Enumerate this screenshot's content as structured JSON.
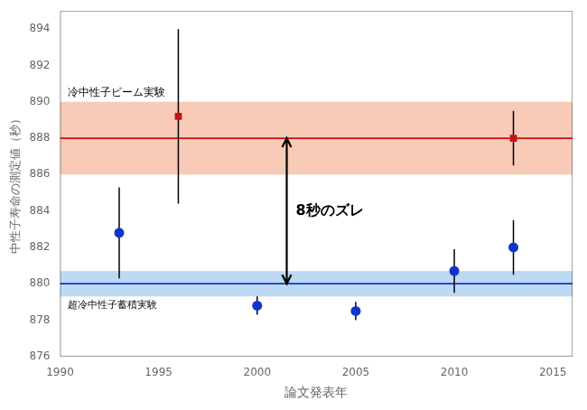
{
  "chart_data": {
    "type": "scatter",
    "xlabel": "論文発表年",
    "ylabel": "中性子寿命の測定値（秒）",
    "series": [
      {
        "color": "#cc1111",
        "marker": "square",
        "x": [
          1996,
          2013
        ],
        "values": [
          889.2,
          888.0
        ],
        "error_plus": [
          4.8,
          1.5
        ],
        "error_minus": [
          4.8,
          1.5
        ]
      },
      {
        "color": "#1133cc",
        "marker": "circle",
        "x": [
          1993,
          2000,
          2005,
          2010,
          2013
        ],
        "values": [
          882.8,
          878.8,
          878.5,
          880.7,
          882.0
        ],
        "error_plus": [
          2.5,
          0.5,
          0.5,
          1.2,
          1.5
        ],
        "error_minus": [
          2.5,
          0.5,
          0.5,
          1.2,
          1.5
        ]
      }
    ],
    "bands": [
      {
        "from": 886.0,
        "to": 890.0,
        "color": "#f5b8a0",
        "label": "冷中性子ビーム実験"
      },
      {
        "from": 879.3,
        "to": 880.7,
        "color": "#a8ccf0",
        "label": "超冷中性子蓄積実験"
      }
    ],
    "lines": [
      {
        "y": 888.0,
        "color": "#cc1111"
      },
      {
        "y": 880.0,
        "color": "#1133cc"
      }
    ],
    "arrow": {
      "x": 2001.5,
      "from": 888.0,
      "to": 880.0,
      "label": "8秒のズレ"
    },
    "xlim": [
      1990,
      2016
    ],
    "ylim": [
      876,
      895
    ],
    "xticks": [
      1990,
      1995,
      2000,
      2005,
      2010,
      2015
    ],
    "yticks": [
      876,
      878,
      880,
      882,
      884,
      886,
      888,
      890,
      892,
      894
    ],
    "grid": false
  }
}
